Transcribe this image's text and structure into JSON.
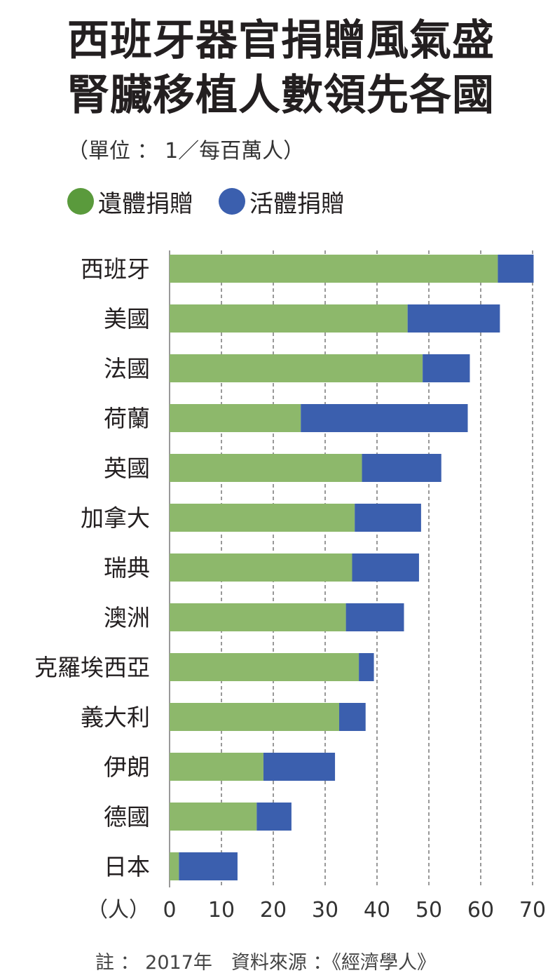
{
  "title_lines": [
    "西班牙器官捐贈風氣盛",
    "腎臟移植人數領先各國"
  ],
  "unit": "（單位 ： 1／每百萬人）",
  "note": "註 ： 2017年　資料來源 ：《經濟學人》",
  "colors": {
    "deceased": "#8db86b",
    "living": "#3b5fae",
    "legend_deceased": "#5a9a3c",
    "legend_living": "#3b5fae"
  },
  "chart_data": {
    "type": "bar",
    "orientation": "horizontal",
    "stacked": true,
    "categories": [
      "西班牙",
      "美國",
      "法國",
      "荷蘭",
      "英國",
      "加拿大",
      "瑞典",
      "澳洲",
      "克羅埃西亞",
      "義大利",
      "伊朗",
      "德國",
      "日本"
    ],
    "series": [
      {
        "name": "遺體捐贈",
        "values": [
          63.3,
          45.9,
          48.8,
          25.3,
          37.1,
          35.7,
          35.2,
          34.0,
          36.5,
          32.7,
          18.1,
          16.8,
          1.8
        ]
      },
      {
        "name": "活體捐贈",
        "values": [
          6.9,
          17.8,
          9.1,
          32.2,
          15.3,
          12.8,
          12.9,
          11.2,
          2.9,
          5.1,
          13.8,
          6.7,
          11.3
        ]
      }
    ],
    "xlim": [
      0,
      70
    ],
    "xticks": [
      "0",
      "10",
      "20",
      "30",
      "40",
      "50",
      "60",
      "70"
    ],
    "xlabel": "（人）",
    "grid": "vertical-dashed",
    "legend": "top-left"
  }
}
